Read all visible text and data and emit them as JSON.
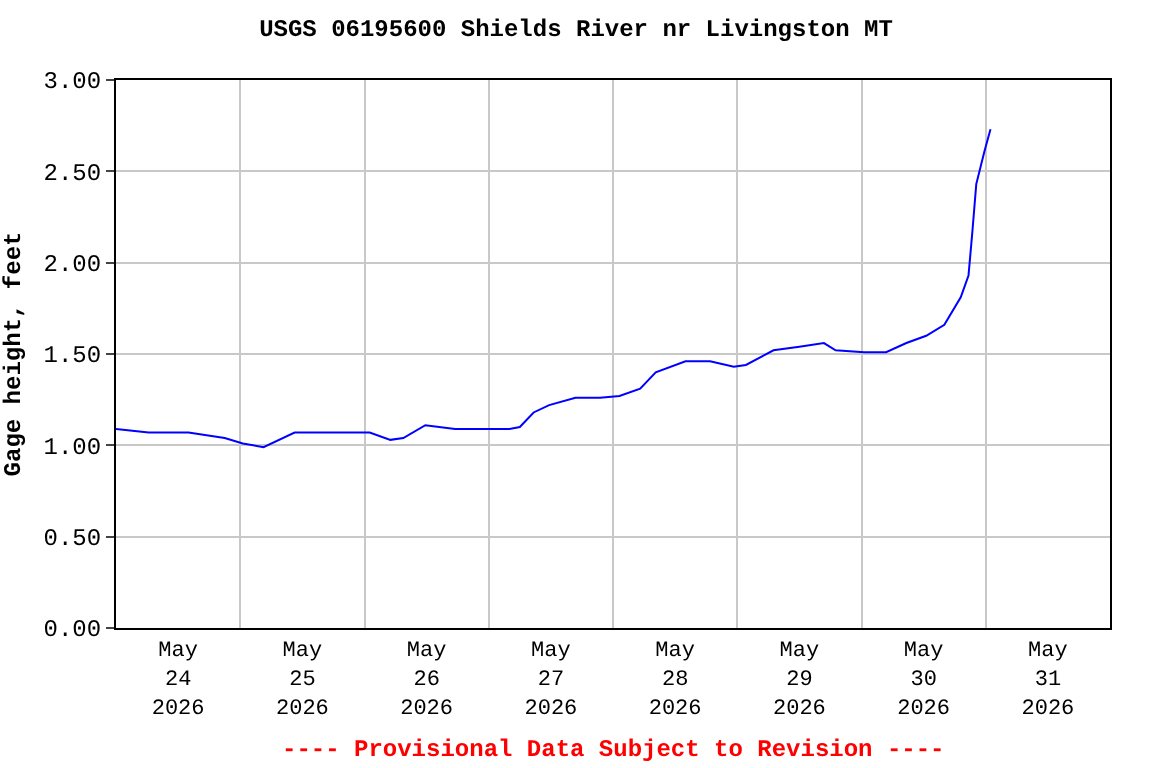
{
  "chart_data": {
    "type": "line",
    "title": "USGS 06195600 Shields River nr Livingston MT",
    "ylabel": "Gage height, feet",
    "annotations": [
      "---- Provisional Data Subject to Revision ----"
    ],
    "x": [
      "2026-05-24T00:00",
      "2026-05-24T06:18",
      "2026-05-24T14:00",
      "2026-05-24T21:00",
      "2026-05-25T00:30",
      "2026-05-25T04:30",
      "2026-05-25T10:30",
      "2026-05-26T01:00",
      "2026-05-26T05:00",
      "2026-05-26T07:30",
      "2026-05-26T11:45",
      "2026-05-26T17:30",
      "2026-05-27T04:00",
      "2026-05-27T06:00",
      "2026-05-27T08:40",
      "2026-05-27T11:40",
      "2026-05-27T16:45",
      "2026-05-27T21:30",
      "2026-05-28T01:15",
      "2026-05-28T05:15",
      "2026-05-28T08:15",
      "2026-05-28T14:00",
      "2026-05-28T18:45",
      "2026-05-28T23:20",
      "2026-05-29T01:40",
      "2026-05-29T07:00",
      "2026-05-29T12:00",
      "2026-05-29T16:45",
      "2026-05-29T19:00",
      "2026-05-30T00:30",
      "2026-05-30T04:45",
      "2026-05-30T08:40",
      "2026-05-30T12:30",
      "2026-05-30T16:00",
      "2026-05-30T19:10",
      "2026-05-30T20:40",
      "2026-05-30T21:25",
      "2026-05-30T22:10",
      "2026-05-30T23:45",
      "2026-05-31T00:55"
    ],
    "series": [
      {
        "color": "#0000ff",
        "values": [
          1.09,
          1.07,
          1.07,
          1.04,
          1.01,
          0.99,
          1.07,
          1.07,
          1.03,
          1.04,
          1.11,
          1.09,
          1.09,
          1.1,
          1.18,
          1.22,
          1.26,
          1.26,
          1.27,
          1.31,
          1.4,
          1.46,
          1.46,
          1.43,
          1.44,
          1.52,
          1.54,
          1.56,
          1.52,
          1.51,
          1.51,
          1.56,
          1.6,
          1.66,
          1.81,
          1.93,
          2.17,
          2.43,
          2.61,
          2.73
        ]
      }
    ],
    "xlim": [
      "2026-05-24T00:00",
      "2026-06-01T00:00"
    ],
    "xticks": [
      {
        "value": "2026-05-24T12:00",
        "label": "May\n24\n2026"
      },
      {
        "value": "2026-05-25T12:00",
        "label": "May\n25\n2026"
      },
      {
        "value": "2026-05-26T12:00",
        "label": "May\n26\n2026"
      },
      {
        "value": "2026-05-27T12:00",
        "label": "May\n27\n2026"
      },
      {
        "value": "2026-05-28T12:00",
        "label": "May\n28\n2026"
      },
      {
        "value": "2026-05-29T12:00",
        "label": "May\n29\n2026"
      },
      {
        "value": "2026-05-30T12:00",
        "label": "May\n30\n2026"
      },
      {
        "value": "2026-05-31T12:00",
        "label": "May\n31\n2026"
      },
      {
        "value": "2026-05-25T00:00",
        "label": null
      },
      {
        "value": "2026-05-26T00:00",
        "label": null
      },
      {
        "value": "2026-05-27T00:00",
        "label": null
      },
      {
        "value": "2026-05-28T00:00",
        "label": null
      },
      {
        "value": "2026-05-29T00:00",
        "label": null
      },
      {
        "value": "2026-05-30T00:00",
        "label": null
      },
      {
        "value": "2026-05-31T00:00",
        "label": null
      }
    ],
    "ylim": [
      0,
      3
    ],
    "yticks": [
      {
        "value": 0,
        "label": "0.00"
      },
      {
        "value": 0.5,
        "label": "0.50"
      },
      {
        "value": 1,
        "label": "1.00"
      },
      {
        "value": 1.5,
        "label": "1.50"
      },
      {
        "value": 2,
        "label": "2.00"
      },
      {
        "value": 2.5,
        "label": "2.50"
      },
      {
        "value": 3,
        "label": "3.00"
      }
    ],
    "grid": true,
    "marker": "none",
    "line_style": "solid"
  }
}
